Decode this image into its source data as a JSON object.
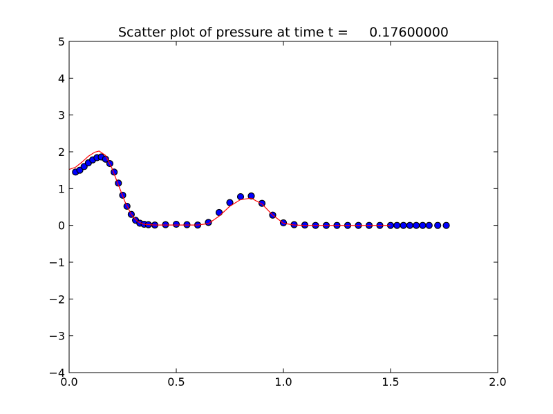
{
  "chart_data": {
    "type": "scatter",
    "title": "Scatter plot of pressure at time t =     0.17600000",
    "xlabel": "",
    "ylabel": "",
    "xlim": [
      0.0,
      2.0
    ],
    "ylim": [
      -4,
      5
    ],
    "x_ticks": [
      0.0,
      0.5,
      1.0,
      1.5,
      2.0
    ],
    "x_tick_labels": [
      "0.0",
      "0.5",
      "1.0",
      "1.5",
      "2.0"
    ],
    "y_ticks": [
      -4,
      -3,
      -2,
      -1,
      0,
      1,
      2,
      3,
      4,
      5
    ],
    "y_tick_labels": [
      "−4",
      "−3",
      "−2",
      "−1",
      "0",
      "1",
      "2",
      "3",
      "4",
      "5"
    ],
    "grid": false,
    "legend": "none",
    "colors": {
      "marker_fill": "#0000ff",
      "marker_edge": "#000000",
      "line": "#ff0000",
      "axes": "#000000",
      "background": "#ffffff"
    },
    "series": [
      {
        "kind": "scatter",
        "x": [
          0.03,
          0.05,
          0.07,
          0.09,
          0.11,
          0.13,
          0.15,
          0.17,
          0.19,
          0.21,
          0.23,
          0.25,
          0.27,
          0.29,
          0.31,
          0.33,
          0.35,
          0.37,
          0.4,
          0.45,
          0.5,
          0.55,
          0.6,
          0.65,
          0.7,
          0.75,
          0.8,
          0.85,
          0.9,
          0.95,
          1.0,
          1.05,
          1.1,
          1.15,
          1.2,
          1.25,
          1.3,
          1.35,
          1.4,
          1.45,
          1.5,
          1.53,
          1.56,
          1.59,
          1.62,
          1.65,
          1.68,
          1.72,
          1.76
        ],
        "y": [
          1.45,
          1.5,
          1.6,
          1.7,
          1.78,
          1.84,
          1.86,
          1.8,
          1.68,
          1.45,
          1.15,
          0.82,
          0.52,
          0.3,
          0.14,
          0.06,
          0.03,
          0.02,
          0.01,
          0.02,
          0.03,
          0.02,
          0.01,
          0.08,
          0.35,
          0.62,
          0.78,
          0.8,
          0.6,
          0.28,
          0.07,
          0.02,
          0.01,
          0.0,
          0.0,
          0.0,
          0.0,
          0.0,
          0.0,
          0.0,
          0.0,
          0.0,
          0.0,
          0.0,
          0.0,
          0.0,
          0.0,
          0.0,
          0.0
        ]
      },
      {
        "kind": "line",
        "x": [
          0.0,
          0.03,
          0.06,
          0.09,
          0.12,
          0.14,
          0.17,
          0.2,
          0.23,
          0.26,
          0.29,
          0.32,
          0.35,
          0.4,
          0.45,
          0.5,
          0.55,
          0.6,
          0.65,
          0.7,
          0.75,
          0.8,
          0.85,
          0.9,
          0.95,
          1.0,
          1.05,
          1.1,
          1.2,
          1.3,
          1.4,
          1.5
        ],
        "y": [
          1.52,
          1.58,
          1.72,
          1.88,
          1.99,
          2.02,
          1.9,
          1.55,
          1.1,
          0.65,
          0.3,
          0.1,
          0.03,
          0.01,
          0.01,
          0.01,
          0.01,
          0.01,
          0.05,
          0.25,
          0.52,
          0.7,
          0.74,
          0.58,
          0.28,
          0.06,
          0.01,
          0.0,
          0.0,
          0.0,
          0.0,
          0.0
        ]
      }
    ]
  }
}
